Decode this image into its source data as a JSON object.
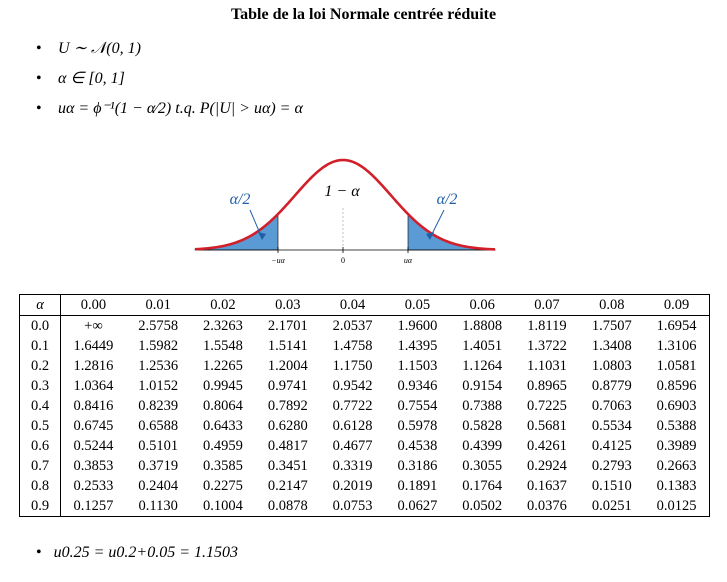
{
  "title": "Table de la loi Normale centrée réduite",
  "bullets": [
    "U ∼ 𝒩(0, 1)",
    "α ∈ [0, 1]",
    "uα = ϕ⁻¹(1 − α⁄2) t.q. P(|U| > uα) = α"
  ],
  "bullet_symbol": "•",
  "figure": {
    "center_label": "1 − α",
    "left_tail_label": "α/2",
    "right_tail_label": "α/2",
    "ticks": [
      "−uα",
      "0",
      "uα"
    ],
    "colors": {
      "curve": "#d2202a",
      "fill": "#5b9bd5",
      "label": "#1f5fa8"
    }
  },
  "table": {
    "corner": "α",
    "columns": [
      "0.00",
      "0.01",
      "0.02",
      "0.03",
      "0.04",
      "0.05",
      "0.06",
      "0.07",
      "0.08",
      "0.09"
    ],
    "rows": [
      {
        "label": "0.0",
        "values": [
          "+∞",
          "2.5758",
          "2.3263",
          "2.1701",
          "2.0537",
          "1.9600",
          "1.8808",
          "1.8119",
          "1.7507",
          "1.6954"
        ]
      },
      {
        "label": "0.1",
        "values": [
          "1.6449",
          "1.5982",
          "1.5548",
          "1.5141",
          "1.4758",
          "1.4395",
          "1.4051",
          "1.3722",
          "1.3408",
          "1.3106"
        ]
      },
      {
        "label": "0.2",
        "values": [
          "1.2816",
          "1.2536",
          "1.2265",
          "1.2004",
          "1.1750",
          "1.1503",
          "1.1264",
          "1.1031",
          "1.0803",
          "1.0581"
        ]
      },
      {
        "label": "0.3",
        "values": [
          "1.0364",
          "1.0152",
          "0.9945",
          "0.9741",
          "0.9542",
          "0.9346",
          "0.9154",
          "0.8965",
          "0.8779",
          "0.8596"
        ]
      },
      {
        "label": "0.4",
        "values": [
          "0.8416",
          "0.8239",
          "0.8064",
          "0.7892",
          "0.7722",
          "0.7554",
          "0.7388",
          "0.7225",
          "0.7063",
          "0.6903"
        ]
      },
      {
        "label": "0.5",
        "values": [
          "0.6745",
          "0.6588",
          "0.6433",
          "0.6280",
          "0.6128",
          "0.5978",
          "0.5828",
          "0.5681",
          "0.5534",
          "0.5388"
        ]
      },
      {
        "label": "0.6",
        "values": [
          "0.5244",
          "0.5101",
          "0.4959",
          "0.4817",
          "0.4677",
          "0.4538",
          "0.4399",
          "0.4261",
          "0.4125",
          "0.3989"
        ]
      },
      {
        "label": "0.7",
        "values": [
          "0.3853",
          "0.3719",
          "0.3585",
          "0.3451",
          "0.3319",
          "0.3186",
          "0.3055",
          "0.2924",
          "0.2793",
          "0.2663"
        ]
      },
      {
        "label": "0.8",
        "values": [
          "0.2533",
          "0.2404",
          "0.2275",
          "0.2147",
          "0.2019",
          "0.1891",
          "0.1764",
          "0.1637",
          "0.1510",
          "0.1383"
        ]
      },
      {
        "label": "0.9",
        "values": [
          "0.1257",
          "0.1130",
          "0.1004",
          "0.0878",
          "0.0753",
          "0.0627",
          "0.0502",
          "0.0376",
          "0.0251",
          "0.0125"
        ]
      }
    ]
  },
  "footnote": "u0.25 = u0.2+0.05 = 1.1503"
}
